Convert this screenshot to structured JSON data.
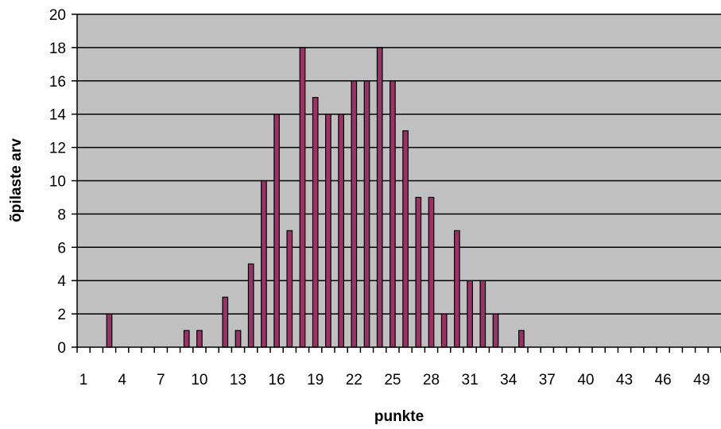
{
  "chart_data": {
    "type": "bar",
    "xlabel": "punkte",
    "ylabel": "õpilaste arv",
    "ylim": [
      0,
      20
    ],
    "yticks": [
      "0",
      "2",
      "4",
      "6",
      "8",
      "10",
      "12",
      "14",
      "16",
      "18",
      "20"
    ],
    "xtick_labels": [
      "1",
      "4",
      "7",
      "10",
      "13",
      "16",
      "19",
      "22",
      "25",
      "28",
      "31",
      "34",
      "37",
      "40",
      "43",
      "46",
      "49"
    ],
    "categories": [
      1,
      2,
      3,
      4,
      5,
      6,
      7,
      8,
      9,
      10,
      11,
      12,
      13,
      14,
      15,
      16,
      17,
      18,
      19,
      20,
      21,
      22,
      23,
      24,
      25,
      26,
      27,
      28,
      29,
      30,
      31,
      32,
      33,
      34,
      35,
      36,
      37,
      38,
      39,
      40,
      41,
      42,
      43,
      44,
      45,
      46,
      47,
      48,
      49,
      50
    ],
    "values": [
      0,
      0,
      2,
      0,
      0,
      0,
      0,
      0,
      1,
      1,
      0,
      3,
      1,
      5,
      10,
      14,
      7,
      18,
      15,
      14,
      14,
      16,
      16,
      18,
      16,
      13,
      9,
      9,
      2,
      7,
      4,
      4,
      2,
      0,
      1,
      0,
      0,
      0,
      0,
      0,
      0,
      0,
      0,
      0,
      0,
      0,
      0,
      0,
      0,
      0
    ],
    "grid": true,
    "plot_background": "#c0c0c0",
    "bar_color": "#993366"
  }
}
